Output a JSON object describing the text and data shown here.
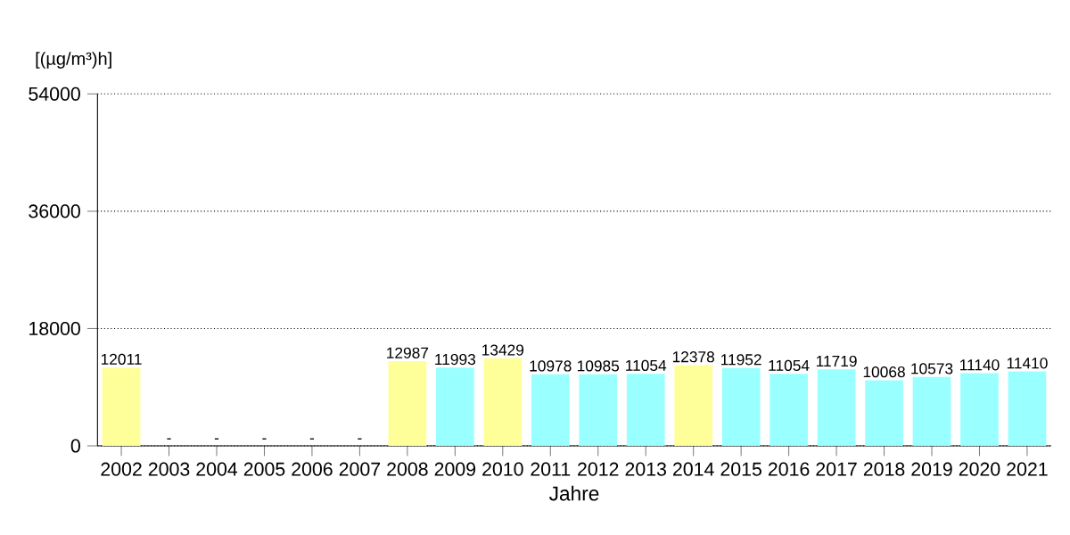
{
  "chart_data": {
    "type": "bar",
    "ylabel": "[(µg/m³)h]",
    "xlabel": "Jahre",
    "categories": [
      "2002",
      "2003",
      "2004",
      "2005",
      "2006",
      "2007",
      "2008",
      "2009",
      "2010",
      "2011",
      "2012",
      "2013",
      "2014",
      "2015",
      "2016",
      "2017",
      "2018",
      "2019",
      "2020",
      "2021"
    ],
    "values": [
      12011,
      null,
      null,
      null,
      null,
      null,
      12987,
      11993,
      13429,
      10978,
      10985,
      11054,
      12378,
      11952,
      11054,
      11719,
      10068,
      10573,
      11140,
      11410
    ],
    "value_labels": [
      "12011",
      "-",
      "-",
      "-",
      "-",
      "-",
      "12987",
      "11993",
      "13429",
      "10978",
      "10985",
      "11054",
      "12378",
      "11952",
      "11054",
      "11719",
      "10068",
      "10573",
      "11140",
      "11410"
    ],
    "colors": [
      "#ffff99",
      null,
      null,
      null,
      null,
      null,
      "#ffff99",
      "#99ffff",
      "#ffff99",
      "#99ffff",
      "#99ffff",
      "#99ffff",
      "#ffff99",
      "#99ffff",
      "#99ffff",
      "#99ffff",
      "#99ffff",
      "#99ffff",
      "#99ffff",
      "#99ffff"
    ],
    "ylim": [
      0,
      54000
    ],
    "yticks": [
      0,
      18000,
      36000,
      54000
    ],
    "grid": "y"
  }
}
